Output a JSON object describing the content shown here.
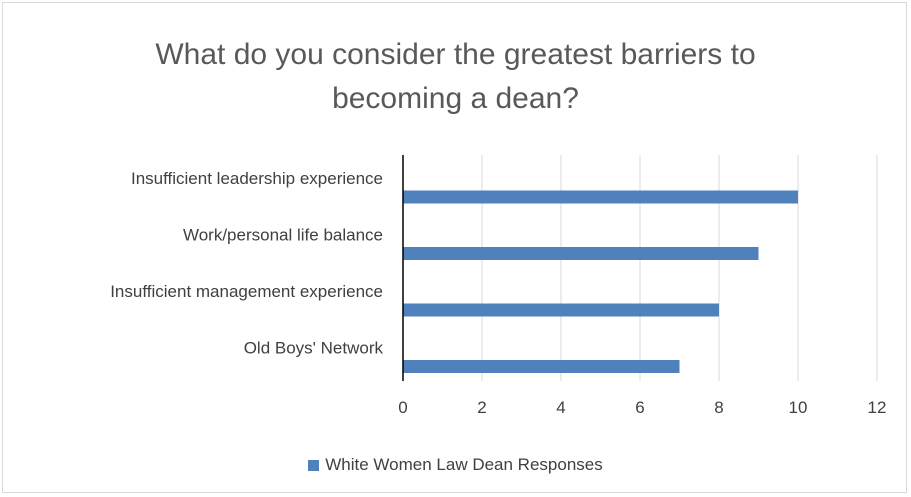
{
  "chart_data": {
    "type": "bar",
    "orientation": "horizontal",
    "title": "What do you consider the greatest barriers to\nbecoming a dean?",
    "categories": [
      "Insufficient leadership experience",
      "Work/personal life balance",
      "Insufficient management experience",
      "Old Boys' Network"
    ],
    "series": [
      {
        "name": "White Women Law Dean Responses",
        "values": [
          10,
          9,
          8,
          7
        ],
        "color": "#4f81bd"
      }
    ],
    "xlim": [
      0,
      12
    ],
    "xticks": [
      "0",
      "2",
      "4",
      "6",
      "8",
      "10",
      "12"
    ],
    "grid": true,
    "legend_position": "bottom"
  },
  "colors": {
    "bar": "#4f81bd",
    "grid": "#d9d9d9",
    "axis": "#000000",
    "text": "#404040",
    "title": "#595959"
  }
}
